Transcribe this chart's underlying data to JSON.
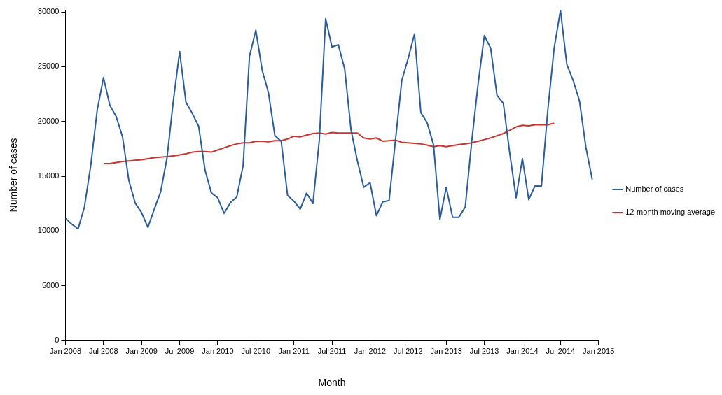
{
  "chart_data": {
    "type": "line",
    "xlabel": "Month",
    "ylabel": "Number of cases",
    "x": [
      "2008-01",
      "2008-02",
      "2008-03",
      "2008-04",
      "2008-05",
      "2008-06",
      "2008-07",
      "2008-08",
      "2008-09",
      "2008-10",
      "2008-11",
      "2008-12",
      "2009-01",
      "2009-02",
      "2009-03",
      "2009-04",
      "2009-05",
      "2009-06",
      "2009-07",
      "2009-08",
      "2009-09",
      "2009-10",
      "2009-11",
      "2009-12",
      "2010-01",
      "2010-02",
      "2010-03",
      "2010-04",
      "2010-05",
      "2010-06",
      "2010-07",
      "2010-08",
      "2010-09",
      "2010-10",
      "2010-11",
      "2010-12",
      "2011-01",
      "2011-02",
      "2011-03",
      "2011-04",
      "2011-05",
      "2011-06",
      "2011-07",
      "2011-08",
      "2011-09",
      "2011-10",
      "2011-11",
      "2011-12",
      "2012-01",
      "2012-02",
      "2012-03",
      "2012-04",
      "2012-05",
      "2012-06",
      "2012-07",
      "2012-08",
      "2012-09",
      "2012-10",
      "2012-11",
      "2012-12",
      "2013-01",
      "2013-02",
      "2013-03",
      "2013-04",
      "2013-05",
      "2013-06",
      "2013-07",
      "2013-08",
      "2013-09",
      "2013-10",
      "2013-11",
      "2013-12",
      "2014-01",
      "2014-02",
      "2014-03",
      "2014-04",
      "2014-05",
      "2014-06",
      "2014-07",
      "2014-08",
      "2014-09",
      "2014-10",
      "2014-11",
      "2014-12"
    ],
    "series": [
      {
        "name": "Number of cases",
        "color": "#2b5d9b",
        "values": [
          11150,
          10630,
          10200,
          12200,
          16000,
          21000,
          24000,
          21480,
          20450,
          18600,
          14600,
          12540,
          11680,
          10330,
          12000,
          13560,
          16630,
          21860,
          26380,
          21750,
          20730,
          19550,
          15560,
          13480,
          13040,
          11610,
          12600,
          13100,
          15980,
          25960,
          28330,
          24700,
          22600,
          18710,
          18200,
          13250,
          12730,
          12000,
          13460,
          12520,
          18290,
          29380,
          26800,
          27010,
          24800,
          19230,
          16400,
          13990,
          14410,
          11400,
          12660,
          12790,
          18290,
          23750,
          25750,
          27990,
          20810,
          19870,
          17870,
          11050,
          13990,
          11260,
          11260,
          12200,
          18080,
          23330,
          27850,
          26690,
          22390,
          21650,
          17140,
          13040,
          16610,
          12870,
          14130,
          14090,
          21020,
          26690,
          30150,
          25220,
          23750,
          21860,
          17660,
          14720
        ]
      },
      {
        "name": "12-month moving average",
        "color": "#c8342f",
        "x": [
          "2008-07",
          "2008-08",
          "2008-09",
          "2008-10",
          "2008-11",
          "2008-12",
          "2009-01",
          "2009-02",
          "2009-03",
          "2009-04",
          "2009-05",
          "2009-06",
          "2009-07",
          "2009-08",
          "2009-09",
          "2009-10",
          "2009-11",
          "2009-12",
          "2010-01",
          "2010-02",
          "2010-03",
          "2010-04",
          "2010-05",
          "2010-06",
          "2010-07",
          "2010-08",
          "2010-09",
          "2010-10",
          "2010-11",
          "2010-12",
          "2011-01",
          "2011-02",
          "2011-03",
          "2011-04",
          "2011-05",
          "2011-06",
          "2011-07",
          "2011-08",
          "2011-09",
          "2011-10",
          "2011-11",
          "2011-12",
          "2012-01",
          "2012-02",
          "2012-03",
          "2012-04",
          "2012-05",
          "2012-06",
          "2012-07",
          "2012-08",
          "2012-09",
          "2012-10",
          "2012-11",
          "2012-12",
          "2013-01",
          "2013-02",
          "2013-03",
          "2013-04",
          "2013-05",
          "2013-06",
          "2013-07",
          "2013-08",
          "2013-09",
          "2013-10",
          "2013-11",
          "2013-12",
          "2014-01",
          "2014-02",
          "2014-03",
          "2014-04",
          "2014-05",
          "2014-06"
        ],
        "values": [
          16150,
          16150,
          16250,
          16350,
          16400,
          16450,
          16500,
          16600,
          16700,
          16750,
          16800,
          16850,
          16950,
          17050,
          17200,
          17250,
          17250,
          17200,
          17400,
          17600,
          17800,
          17950,
          18050,
          18050,
          18200,
          18200,
          18150,
          18250,
          18250,
          18400,
          18650,
          18600,
          18750,
          18900,
          18950,
          18850,
          19000,
          18950,
          18950,
          18950,
          18950,
          18500,
          18400,
          18500,
          18200,
          18250,
          18300,
          18100,
          18050,
          18000,
          17950,
          17850,
          17700,
          17800,
          17700,
          17800,
          17900,
          17950,
          18050,
          18200,
          18350,
          18500,
          18700,
          18900,
          19200,
          19500,
          19650,
          19600,
          19700,
          19700,
          19700,
          19850
        ]
      }
    ],
    "xlim": [
      "2008-01",
      "2015-01"
    ],
    "xticks": [
      {
        "value": "2008-01",
        "label": "Jan 2008"
      },
      {
        "value": "2008-07",
        "label": "Jul 2008"
      },
      {
        "value": "2009-01",
        "label": "Jan 2009"
      },
      {
        "value": "2009-07",
        "label": "Jul 2009"
      },
      {
        "value": "2010-01",
        "label": "Jan 2010"
      },
      {
        "value": "2010-07",
        "label": "Jul 2010"
      },
      {
        "value": "2011-01",
        "label": "Jan 2011"
      },
      {
        "value": "2011-07",
        "label": "Jul 2011"
      },
      {
        "value": "2012-01",
        "label": "Jan 2012"
      },
      {
        "value": "2012-07",
        "label": "Jul 2012"
      },
      {
        "value": "2013-01",
        "label": "Jan 2013"
      },
      {
        "value": "2013-07",
        "label": "Jul 2013"
      },
      {
        "value": "2014-01",
        "label": "Jan 2014"
      },
      {
        "value": "2014-07",
        "label": "Jul 2014"
      },
      {
        "value": "2015-01",
        "label": "Jan 2015"
      }
    ],
    "ylim": [
      0,
      30200
    ],
    "yticks": [
      0,
      5000,
      10000,
      15000,
      20000,
      25000,
      30000
    ],
    "grid": false,
    "legend": "right",
    "marker": "none",
    "line_style": "solid"
  }
}
